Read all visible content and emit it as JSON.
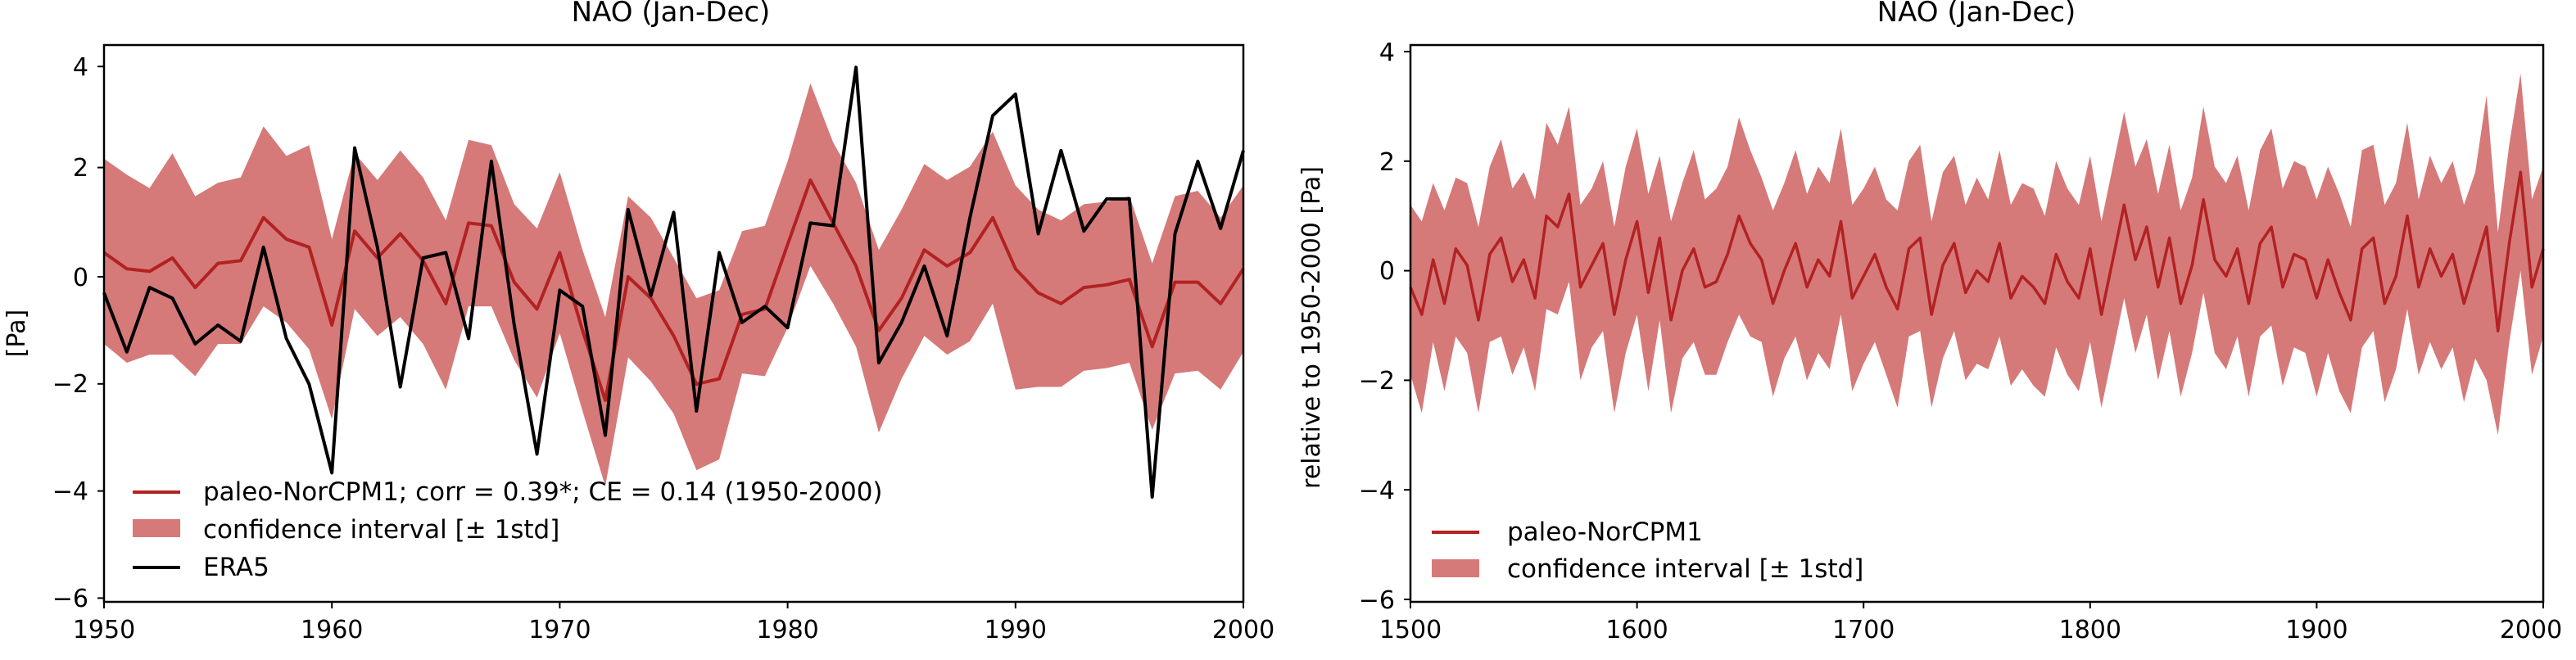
{
  "colors": {
    "model_line": "#b22222",
    "band": "#cd5c5c",
    "band_opacity": 0.82,
    "era5_line": "#000000"
  },
  "chart_data": [
    {
      "type": "line",
      "title": "NAO (Jan-Dec)",
      "xlabel": "",
      "ylabel": "[Pa]",
      "xlim": [
        1950,
        2000
      ],
      "ylim": [
        -6.2,
        4.2
      ],
      "xticks": [
        "1950",
        "1960",
        "1970",
        "1980",
        "1990",
        "2000"
      ],
      "yticks": [
        "4",
        "2",
        "0",
        "−2",
        "−4",
        "−6"
      ],
      "legend_position": "lower-left",
      "legend": {
        "model": "paleo-NorCPM1; corr = 0.39*; CE = 0.14 (1950-2000)",
        "band": "confidence interval [± 1std]",
        "era5": "ERA5"
      },
      "x": [
        1950,
        1951,
        1952,
        1953,
        1954,
        1955,
        1956,
        1957,
        1958,
        1959,
        1960,
        1961,
        1962,
        1963,
        1964,
        1965,
        1966,
        1967,
        1968,
        1969,
        1970,
        1971,
        1972,
        1973,
        1974,
        1975,
        1976,
        1977,
        1978,
        1979,
        1980,
        1981,
        1982,
        1983,
        1984,
        1985,
        1986,
        1987,
        1988,
        1989,
        1990,
        1991,
        1992,
        1993,
        1994,
        1995,
        1996,
        1997,
        1998,
        1999,
        2000
      ],
      "series": [
        {
          "name": "paleo-NorCPM1; corr = 0.39*; CE = 0.14 (1950-2000)",
          "values": [
            0.45,
            0.15,
            0.1,
            0.35,
            -0.2,
            0.25,
            0.3,
            1.1,
            0.7,
            0.55,
            -0.9,
            0.85,
            0.35,
            0.8,
            0.3,
            -0.5,
            1.0,
            0.95,
            -0.1,
            -0.6,
            0.45,
            -1.0,
            -2.3,
            0.0,
            -0.4,
            -1.1,
            -2.0,
            -1.9,
            -0.7,
            -0.6,
            0.6,
            1.8,
            1.0,
            0.2,
            -1.0,
            -0.4,
            0.5,
            0.2,
            0.45,
            1.1,
            0.15,
            -0.3,
            -0.5,
            -0.2,
            -0.15,
            -0.05,
            -1.3,
            -0.1,
            -0.1,
            -0.5,
            0.15
          ]
        },
        {
          "name": "confidence interval [± 1std]",
          "upper": [
            2.2,
            1.9,
            1.65,
            2.3,
            1.5,
            1.75,
            1.85,
            2.8,
            2.25,
            2.45,
            0.7,
            2.3,
            1.8,
            2.35,
            1.85,
            1.05,
            2.55,
            2.45,
            1.35,
            0.9,
            1.95,
            0.5,
            -0.75,
            1.5,
            1.1,
            0.35,
            -0.4,
            -0.25,
            0.85,
            0.95,
            2.15,
            3.6,
            2.5,
            1.75,
            0.5,
            1.25,
            2.1,
            1.8,
            2.05,
            2.7,
            1.7,
            1.25,
            1.05,
            1.35,
            1.4,
            1.5,
            0.25,
            1.5,
            1.6,
            1.1,
            1.7
          ],
          "lower": [
            -1.25,
            -1.6,
            -1.45,
            -1.45,
            -1.85,
            -1.25,
            -1.25,
            -0.55,
            -0.85,
            -1.35,
            -2.65,
            -0.6,
            -1.1,
            -0.75,
            -1.25,
            -2.1,
            -0.55,
            -0.55,
            -1.55,
            -2.25,
            -1.05,
            -2.5,
            -3.9,
            -1.5,
            -1.95,
            -2.55,
            -3.6,
            -3.4,
            -1.8,
            -1.85,
            -0.95,
            0.2,
            -0.5,
            -1.3,
            -2.9,
            -1.9,
            -1.1,
            -1.45,
            -1.2,
            -0.5,
            -2.1,
            -2.05,
            -2.05,
            -1.75,
            -1.7,
            -1.6,
            -2.85,
            -1.8,
            -1.75,
            -2.1,
            -1.4
          ]
        },
        {
          "name": "ERA5",
          "values": [
            -0.3,
            -1.4,
            -0.2,
            -0.4,
            -1.25,
            -0.9,
            -1.2,
            0.55,
            -1.15,
            -2.0,
            -3.65,
            2.4,
            0.55,
            -2.05,
            0.35,
            0.45,
            -1.15,
            2.15,
            -0.9,
            -3.3,
            -0.25,
            -0.55,
            -2.95,
            1.25,
            -0.35,
            1.2,
            -2.5,
            0.45,
            -0.85,
            -0.55,
            -0.95,
            1.0,
            0.95,
            3.9,
            -1.6,
            -0.85,
            0.2,
            -1.1,
            1.1,
            3.0,
            3.4,
            0.8,
            2.35,
            0.85,
            1.45,
            1.45,
            -4.1,
            0.8,
            2.15,
            0.9,
            2.35
          ]
        }
      ]
    },
    {
      "type": "line",
      "title": "NAO (Jan-Dec)",
      "xlabel": "",
      "ylabel": "relative to 1950-2000 [Pa]",
      "xlim": [
        1500,
        2000
      ],
      "ylim": [
        -6.2,
        4.2
      ],
      "xticks": [
        "1500",
        "1600",
        "1700",
        "1800",
        "1900",
        "2000"
      ],
      "yticks": [
        "4",
        "2",
        "0",
        "−2",
        "−4",
        "−6"
      ],
      "legend_position": "lower-left",
      "legend": {
        "model": "paleo-NorCPM1",
        "band": "confidence interval [± 1std]"
      },
      "x_start": 1500,
      "x_step": 5,
      "series": [
        {
          "name": "paleo-NorCPM1",
          "values": [
            -0.3,
            -0.8,
            0.2,
            -0.6,
            0.4,
            0.1,
            -0.9,
            0.3,
            0.6,
            -0.2,
            0.2,
            -0.5,
            1.0,
            0.8,
            1.4,
            -0.3,
            0.1,
            0.5,
            -0.8,
            0.2,
            0.9,
            -0.4,
            0.6,
            -0.9,
            0.0,
            0.4,
            -0.3,
            -0.2,
            0.3,
            1.0,
            0.5,
            0.2,
            -0.6,
            0.0,
            0.5,
            -0.3,
            0.2,
            -0.1,
            0.9,
            -0.5,
            -0.1,
            0.3,
            -0.3,
            -0.7,
            0.4,
            0.6,
            -0.8,
            0.1,
            0.5,
            -0.4,
            0.0,
            -0.2,
            0.5,
            -0.5,
            -0.1,
            -0.3,
            -0.6,
            0.3,
            -0.2,
            -0.5,
            0.4,
            -0.8,
            0.2,
            1.2,
            0.2,
            0.8,
            -0.3,
            0.6,
            -0.6,
            0.1,
            1.3,
            0.2,
            -0.1,
            0.4,
            -0.6,
            0.5,
            0.8,
            -0.3,
            0.3,
            0.2,
            -0.5,
            0.2,
            -0.4,
            -0.9,
            0.4,
            0.6,
            -0.6,
            -0.1,
            1.0,
            -0.3,
            0.4,
            -0.1,
            0.3,
            -0.6,
            0.1,
            0.8,
            -1.1,
            0.5,
            1.8,
            -0.3,
            0.4
          ]
        },
        {
          "name": "confidence interval [± 1std]",
          "upper": [
            1.2,
            0.9,
            1.6,
            1.1,
            1.7,
            1.6,
            0.8,
            1.9,
            2.4,
            1.5,
            1.8,
            1.3,
            2.7,
            2.3,
            3.0,
            1.2,
            1.5,
            2.0,
            0.8,
            1.9,
            2.6,
            1.4,
            2.1,
            0.9,
            1.6,
            2.2,
            1.3,
            1.5,
            1.9,
            2.8,
            2.2,
            1.7,
            1.1,
            1.6,
            2.2,
            1.4,
            1.9,
            1.6,
            2.6,
            1.2,
            1.5,
            1.9,
            1.3,
            1.1,
            2.0,
            2.3,
            0.9,
            1.8,
            2.1,
            1.2,
            1.7,
            1.3,
            2.2,
            1.2,
            1.6,
            1.5,
            1.0,
            2.0,
            1.5,
            1.2,
            2.1,
            0.9,
            1.9,
            2.9,
            1.9,
            2.4,
            1.4,
            2.3,
            1.1,
            1.7,
            3.0,
            1.9,
            1.6,
            2.1,
            1.1,
            2.2,
            2.6,
            1.5,
            2.0,
            1.9,
            1.3,
            1.9,
            1.4,
            0.8,
            2.2,
            2.3,
            1.2,
            1.6,
            2.7,
            1.3,
            2.1,
            1.6,
            2.0,
            1.2,
            1.8,
            3.2,
            0.7,
            2.3,
            3.6,
            1.3,
            1.9
          ],
          "lower": [
            -1.9,
            -2.6,
            -1.3,
            -2.2,
            -1.2,
            -1.5,
            -2.6,
            -1.3,
            -1.2,
            -1.9,
            -1.4,
            -2.2,
            -0.7,
            -0.8,
            -0.2,
            -2.0,
            -1.4,
            -1.1,
            -2.6,
            -1.5,
            -0.8,
            -2.2,
            -0.9,
            -2.6,
            -1.6,
            -1.3,
            -1.9,
            -1.9,
            -1.3,
            -0.8,
            -1.2,
            -1.3,
            -2.3,
            -1.6,
            -1.2,
            -2.0,
            -1.5,
            -1.8,
            -0.8,
            -2.2,
            -1.7,
            -1.3,
            -1.9,
            -2.5,
            -1.2,
            -1.1,
            -2.5,
            -1.6,
            -1.1,
            -2.0,
            -1.7,
            -1.8,
            -1.2,
            -2.1,
            -1.8,
            -2.1,
            -2.3,
            -1.4,
            -1.9,
            -2.2,
            -1.3,
            -2.5,
            -1.5,
            -0.5,
            -1.5,
            -0.8,
            -2.0,
            -1.1,
            -2.3,
            -1.5,
            -0.4,
            -1.5,
            -1.8,
            -1.2,
            -2.3,
            -1.2,
            -1.0,
            -2.1,
            -1.4,
            -1.5,
            -2.3,
            -1.5,
            -2.2,
            -2.6,
            -1.4,
            -1.1,
            -2.4,
            -1.8,
            -0.7,
            -1.9,
            -1.3,
            -1.8,
            -1.4,
            -2.4,
            -1.6,
            -2.0,
            -3.0,
            -1.3,
            0.0,
            -1.9,
            -1.2
          ]
        }
      ]
    }
  ]
}
